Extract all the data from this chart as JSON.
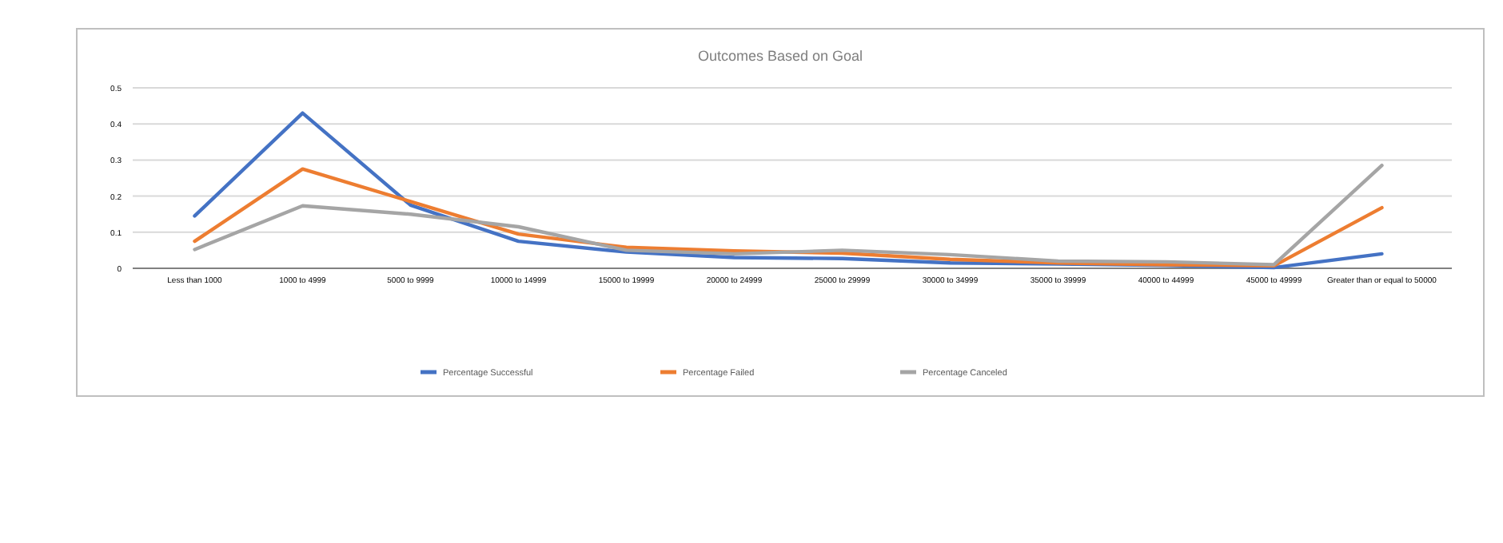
{
  "chart_data": {
    "type": "line",
    "title": "Outcomes Based on Goal",
    "categories": [
      "Less than 1000",
      "1000 to 4999",
      "5000 to 9999",
      "10000 to 14999",
      "15000 to 19999",
      "20000 to 24999",
      "25000 to 29999",
      "30000 to 34999",
      "35000 to 39999",
      "40000 to 44999",
      "45000 to 49999",
      "Greater than or equal to 50000"
    ],
    "series": [
      {
        "name": "Percentage Successful",
        "color": "#4472c4",
        "values": [
          0.145,
          0.43,
          0.175,
          0.075,
          0.045,
          0.03,
          0.027,
          0.015,
          0.012,
          0.008,
          0.002,
          0.04
        ]
      },
      {
        "name": "Percentage Failed",
        "color": "#ed7d31",
        "values": [
          0.075,
          0.275,
          0.185,
          0.095,
          0.058,
          0.048,
          0.042,
          0.025,
          0.015,
          0.01,
          0.007,
          0.168
        ]
      },
      {
        "name": "Percentage Canceled",
        "color": "#a5a5a5",
        "values": [
          0.052,
          0.173,
          0.15,
          0.115,
          0.05,
          0.04,
          0.05,
          0.038,
          0.02,
          0.018,
          0.01,
          0.285
        ]
      }
    ],
    "ylim": [
      0,
      0.5
    ],
    "yticks": [
      0,
      0.1,
      0.2,
      0.3,
      0.4,
      0.5
    ],
    "grid": "y",
    "legend": "bottom",
    "marker": "none",
    "line_style": "solid"
  }
}
